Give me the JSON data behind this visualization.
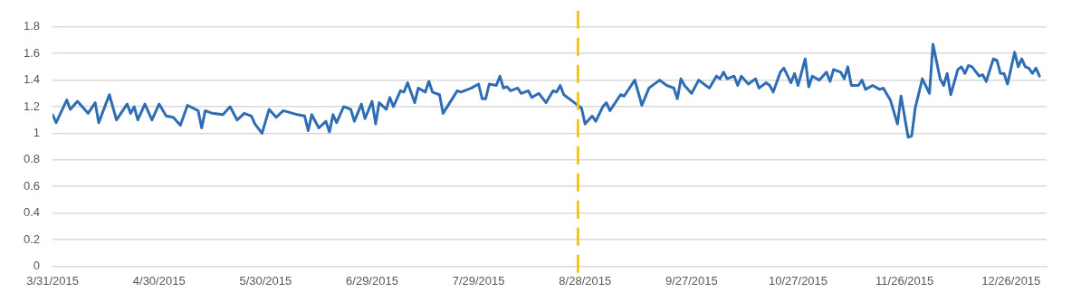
{
  "chart_data": {
    "type": "line",
    "x": [
      "2015-03-31",
      "2015-04-01",
      "2015-04-04",
      "2015-04-05",
      "2015-04-07",
      "2015-04-10",
      "2015-04-12",
      "2015-04-13",
      "2015-04-16",
      "2015-04-18",
      "2015-04-21",
      "2015-04-22",
      "2015-04-23",
      "2015-04-24",
      "2015-04-26",
      "2015-04-28",
      "2015-04-30",
      "2015-05-02",
      "2015-05-04",
      "2015-05-06",
      "2015-05-08",
      "2015-05-11",
      "2015-05-12",
      "2015-05-13",
      "2015-05-15",
      "2015-05-18",
      "2015-05-20",
      "2015-05-22",
      "2015-05-24",
      "2015-05-26",
      "2015-05-27",
      "2015-05-29",
      "2015-05-31",
      "2015-06-02",
      "2015-06-04",
      "2015-06-08",
      "2015-06-10",
      "2015-06-11",
      "2015-06-12",
      "2015-06-14",
      "2015-06-16",
      "2015-06-17",
      "2015-06-18",
      "2015-06-19",
      "2015-06-21",
      "2015-06-23",
      "2015-06-24",
      "2015-06-26",
      "2015-06-27",
      "2015-06-29",
      "2015-06-30",
      "2015-07-01",
      "2015-07-03",
      "2015-07-04",
      "2015-07-05",
      "2015-07-07",
      "2015-07-08",
      "2015-07-09",
      "2015-07-11",
      "2015-07-12",
      "2015-07-14",
      "2015-07-15",
      "2015-07-16",
      "2015-07-18",
      "2015-07-19",
      "2015-07-23",
      "2015-07-24",
      "2015-07-27",
      "2015-07-29",
      "2015-07-30",
      "2015-07-31",
      "2015-08-01",
      "2015-08-03",
      "2015-08-04",
      "2015-08-05",
      "2015-08-06",
      "2015-08-07",
      "2015-08-09",
      "2015-08-10",
      "2015-08-12",
      "2015-08-13",
      "2015-08-15",
      "2015-08-17",
      "2015-08-19",
      "2015-08-20",
      "2015-08-21",
      "2015-08-22",
      "2015-08-24",
      "2015-08-25",
      "2015-08-27",
      "2015-08-28",
      "2015-08-30",
      "2015-08-31",
      "2015-09-02",
      "2015-09-03",
      "2015-09-04",
      "2015-09-07",
      "2015-09-08",
      "2015-09-11",
      "2015-09-13",
      "2015-09-15",
      "2015-09-18",
      "2015-09-20",
      "2015-09-22",
      "2015-09-23",
      "2015-09-24",
      "2015-09-25",
      "2015-09-27",
      "2015-09-29",
      "2015-10-01",
      "2015-10-02",
      "2015-10-04",
      "2015-10-05",
      "2015-10-06",
      "2015-10-07",
      "2015-10-09",
      "2015-10-10",
      "2015-10-11",
      "2015-10-13",
      "2015-10-15",
      "2015-10-16",
      "2015-10-18",
      "2015-10-19",
      "2015-10-20",
      "2015-10-22",
      "2015-10-23",
      "2015-10-25",
      "2015-10-26",
      "2015-10-27",
      "2015-10-29",
      "2015-10-30",
      "2015-10-31",
      "2015-11-02",
      "2015-11-04",
      "2015-11-05",
      "2015-11-06",
      "2015-11-08",
      "2015-11-09",
      "2015-11-10",
      "2015-11-11",
      "2015-11-13",
      "2015-11-14",
      "2015-11-15",
      "2015-11-17",
      "2015-11-19",
      "2015-11-20",
      "2015-11-22",
      "2015-11-24",
      "2015-11-25",
      "2015-11-27",
      "2015-11-28",
      "2015-11-29",
      "2015-12-01",
      "2015-12-03",
      "2015-12-04",
      "2015-12-06",
      "2015-12-07",
      "2015-12-08",
      "2015-12-09",
      "2015-12-11",
      "2015-12-12",
      "2015-12-13",
      "2015-12-14",
      "2015-12-15",
      "2015-12-17",
      "2015-12-18",
      "2015-12-19",
      "2015-12-21",
      "2015-12-22",
      "2015-12-23",
      "2015-12-24",
      "2015-12-25",
      "2015-12-27",
      "2015-12-28",
      "2015-12-29",
      "2015-12-30",
      "2015-12-31",
      "2016-01-01",
      "2016-01-02",
      "2016-01-03"
    ],
    "series": [
      {
        "color": "#2e6db4",
        "values": [
          1.14,
          1.08,
          1.25,
          1.18,
          1.24,
          1.15,
          1.23,
          1.08,
          1.29,
          1.1,
          1.22,
          1.15,
          1.2,
          1.1,
          1.22,
          1.1,
          1.22,
          1.13,
          1.12,
          1.06,
          1.21,
          1.17,
          1.04,
          1.17,
          1.15,
          1.14,
          1.2,
          1.1,
          1.15,
          1.13,
          1.07,
          1.0,
          1.18,
          1.12,
          1.17,
          1.14,
          1.13,
          1.02,
          1.14,
          1.04,
          1.09,
          1.01,
          1.14,
          1.08,
          1.2,
          1.18,
          1.09,
          1.22,
          1.11,
          1.24,
          1.07,
          1.23,
          1.18,
          1.27,
          1.2,
          1.32,
          1.31,
          1.38,
          1.23,
          1.34,
          1.31,
          1.39,
          1.31,
          1.29,
          1.15,
          1.32,
          1.31,
          1.34,
          1.37,
          1.26,
          1.26,
          1.37,
          1.36,
          1.43,
          1.34,
          1.35,
          1.32,
          1.34,
          1.3,
          1.32,
          1.27,
          1.3,
          1.23,
          1.32,
          1.31,
          1.36,
          1.29,
          1.25,
          1.23,
          1.19,
          1.07,
          1.13,
          1.09,
          1.2,
          1.23,
          1.17,
          1.29,
          1.28,
          1.4,
          1.21,
          1.34,
          1.4,
          1.36,
          1.34,
          1.26,
          1.41,
          1.36,
          1.3,
          1.4,
          1.36,
          1.34,
          1.43,
          1.41,
          1.46,
          1.41,
          1.43,
          1.36,
          1.43,
          1.37,
          1.41,
          1.34,
          1.38,
          1.36,
          1.31,
          1.46,
          1.49,
          1.38,
          1.45,
          1.36,
          1.56,
          1.35,
          1.43,
          1.4,
          1.46,
          1.39,
          1.48,
          1.46,
          1.41,
          1.5,
          1.36,
          1.36,
          1.4,
          1.33,
          1.36,
          1.33,
          1.34,
          1.25,
          1.07,
          1.28,
          0.97,
          0.98,
          1.19,
          1.41,
          1.3,
          1.67,
          1.41,
          1.36,
          1.45,
          1.29,
          1.48,
          1.5,
          1.45,
          1.51,
          1.5,
          1.43,
          1.44,
          1.39,
          1.56,
          1.55,
          1.45,
          1.45,
          1.37,
          1.61,
          1.5,
          1.56,
          1.5,
          1.49,
          1.45,
          1.49,
          1.43
        ]
      }
    ],
    "xlim": [
      "2015-03-31",
      "2016-01-05"
    ],
    "xticks": [
      {
        "value": "2015-03-31",
        "label": "3/31/2015"
      },
      {
        "value": "2015-04-30",
        "label": "4/30/2015"
      },
      {
        "value": "2015-05-30",
        "label": "5/30/2015"
      },
      {
        "value": "2015-06-29",
        "label": "6/29/2015"
      },
      {
        "value": "2015-07-29",
        "label": "7/29/2015"
      },
      {
        "value": "2015-08-28",
        "label": "8/28/2015"
      },
      {
        "value": "2015-09-27",
        "label": "9/27/2015"
      },
      {
        "value": "2015-10-27",
        "label": "10/27/2015"
      },
      {
        "value": "2015-11-26",
        "label": "11/26/2015"
      },
      {
        "value": "2015-12-26",
        "label": "12/26/2015"
      }
    ],
    "ylim": [
      0,
      1.8
    ],
    "yticks": [
      0,
      0.2,
      0.4,
      0.6,
      0.8,
      1,
      1.2,
      1.4,
      1.6,
      1.8
    ],
    "grid": "y",
    "legend": false,
    "marker": "none",
    "line_style": "solid",
    "ref_lines": [
      {
        "axis": "x",
        "value": "2015-08-26",
        "color": "#f5c518",
        "line_style": "dashed"
      }
    ]
  }
}
